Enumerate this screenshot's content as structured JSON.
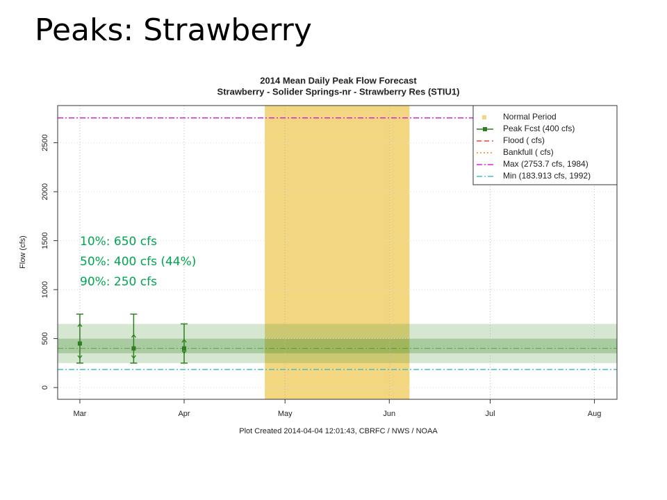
{
  "slide_title": "Peaks: Strawberry",
  "chart_data": {
    "type": "errorbar",
    "title": [
      "2014 Mean Daily Peak Flow Forecast",
      "Strawberry - Solider Springs-nr - Strawberry Res (STIU1)"
    ],
    "footer": "Plot Created 2014-04-04 12:01:43, CBRFC / NWS / NOAA",
    "y_label": "Flow (cfs)",
    "xlim": [
      53.4,
      219.7
    ],
    "xticks": [
      {
        "value": 60,
        "label": "Mar"
      },
      {
        "value": 91,
        "label": "Apr"
      },
      {
        "value": 121,
        "label": "May"
      },
      {
        "value": 152,
        "label": "Jun"
      },
      {
        "value": 182,
        "label": "Jul"
      },
      {
        "value": 213,
        "label": "Aug"
      }
    ],
    "ylim": [
      -120,
      2880
    ],
    "yticks": [
      0,
      500,
      1000,
      1500,
      2000,
      2500
    ],
    "grid": true,
    "normal_period": {
      "name": "Normal Period",
      "range": [
        115,
        158
      ],
      "color": "#f2d680"
    },
    "bands": [
      {
        "range": [
          250,
          650
        ],
        "color": "#5a9e46",
        "opacity": 0.25
      },
      {
        "range": [
          350,
          500
        ],
        "color": "#3f8a30",
        "opacity": 0.3
      }
    ],
    "series": [
      {
        "name": "Peak Fcst (400 cfs)",
        "color": "#2e7d1e",
        "level": 400,
        "x": [
          60,
          76,
          91
        ],
        "values": [
          450,
          400,
          400
        ],
        "upper": [
          750,
          750,
          650
        ],
        "lower": [
          250,
          250,
          250
        ],
        "upper_inner": [
          650,
          540,
          490
        ],
        "lower_inner": [
          300,
          300,
          350
        ]
      }
    ],
    "reference_lines": [
      {
        "name": "Flood ( cfs)",
        "value": null,
        "color": "#e8402a",
        "linestyle": "dashed"
      },
      {
        "name": "Bankfull ( cfs)",
        "value": null,
        "color": "#e8862a",
        "linestyle": "dotted"
      },
      {
        "name": "Max (2753.7 cfs, 1984)",
        "value": 2753.7,
        "color": "#e020e0",
        "linestyle": "dashdot"
      },
      {
        "name": "Min (183.913 cfs, 1992)",
        "value": 183.913,
        "color": "#40c0d0",
        "linestyle": "dashdot"
      }
    ],
    "annotations": [
      "10%: 650 cfs",
      "50%: 400 cfs (44%)",
      "90%: 250 cfs"
    ]
  }
}
